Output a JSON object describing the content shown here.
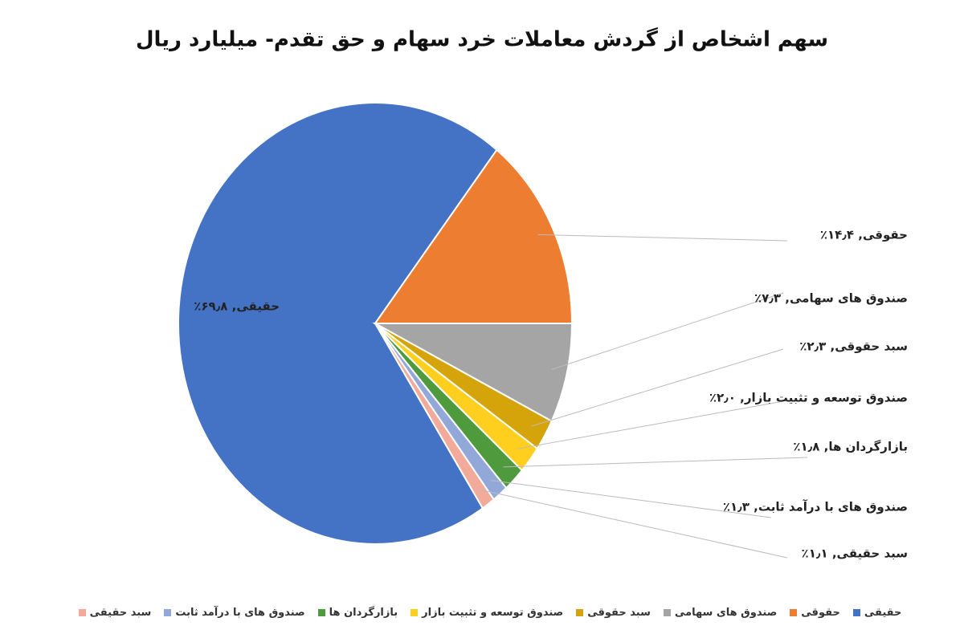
{
  "chart_data": {
    "type": "pie",
    "title": "سهم اشخاص از گردش معاملات خرد سهام و حق تقدم- میلیارد ریال",
    "categories": [
      "حقیقی",
      "حقوقی",
      "صندوق های سهامی",
      "سبد حقوقی",
      "صندوق توسعه و تثبیت بازار",
      "بازارگردان ها",
      "صندوق های با درآمد ثابت",
      "سبد حقیقی"
    ],
    "values": [
      69.8,
      14.4,
      7.3,
      2.3,
      2.0,
      1.8,
      1.3,
      1.1
    ],
    "value_labels": [
      "حقیقی, ۶۹٫۸٪",
      "حقوقی, ۱۴٫۴٪",
      "صندوق های سهامی, ۷٫۳٪",
      "سبد حقوقی, ۲٫۳٪",
      "صندوق توسعه و تثبیت بازار, ۲٫۰٪",
      "بازارگردان ها, ۱٫۸٪",
      "صندوق های با درآمد ثابت, ۱٫۳٪",
      "سبد حقیقی, ۱٫۱٪"
    ],
    "colors": [
      "#4472c4",
      "#ed7d31",
      "#a5a5a5",
      "#d4a40a",
      "#ffcf1f",
      "#4f9a3c",
      "#92a8d9",
      "#f2ab9b"
    ],
    "legend": "bottom"
  }
}
